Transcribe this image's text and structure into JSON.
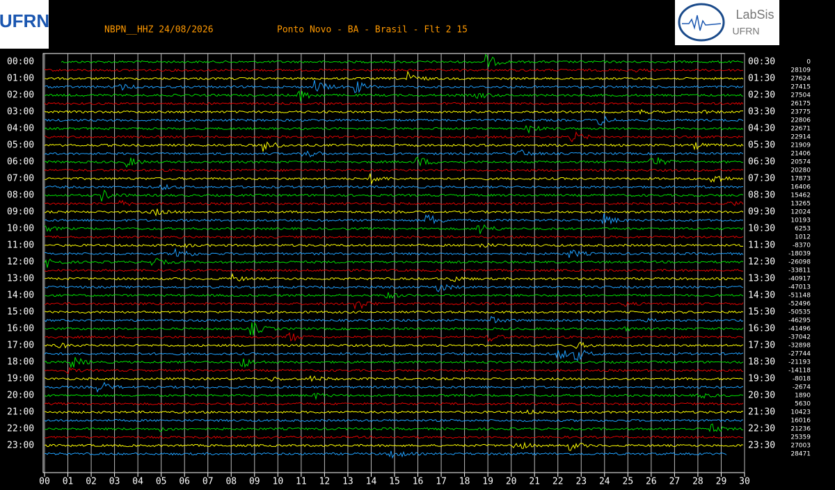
{
  "header": {
    "station": "NBPN__HHZ 24/08/2026",
    "location": "Ponto Novo - BA - Brasil - Flt 2 15",
    "logo_left": "UFRN",
    "logo_right": [
      "LabSis",
      "UFRN"
    ]
  },
  "traces": {
    "left_labels": [
      "00:00",
      "01:00",
      "02:00",
      "03:00",
      "04:00",
      "05:00",
      "06:00",
      "07:00",
      "08:00",
      "09:00",
      "10:00",
      "11:00",
      "12:00",
      "13:00",
      "14:00",
      "15:00",
      "16:00",
      "17:00",
      "18:00",
      "19:00",
      "20:00",
      "21:00",
      "22:00",
      "23:00"
    ],
    "right_labels": [
      "00:30",
      "01:30",
      "02:30",
      "03:30",
      "04:30",
      "05:30",
      "06:30",
      "07:30",
      "08:30",
      "09:30",
      "10:30",
      "11:30",
      "12:30",
      "13:30",
      "14:30",
      "15:30",
      "16:30",
      "17:30",
      "18:30",
      "19:30",
      "20:30",
      "21:30",
      "22:30",
      "23:30"
    ],
    "offsets": [
      0,
      28109,
      27624,
      27415,
      27504,
      26175,
      23775,
      22806,
      22671,
      22914,
      21909,
      21406,
      20574,
      20280,
      17873,
      16406,
      15462,
      13265,
      12024,
      10193,
      6253,
      1012,
      -8370,
      -18039,
      -26098,
      -33811,
      -40917,
      -47013,
      -51148,
      -52496,
      -50535,
      -46295,
      -41496,
      -37042,
      -32898,
      -27744,
      -21193,
      -14118,
      -8018,
      -2674,
      1890,
      5630,
      10423,
      16016,
      21236,
      25359,
      27003,
      28471
    ],
    "colors": [
      "#00e000",
      "#e00000",
      "#ffff00",
      "#1ea0ff"
    ]
  },
  "x_axis": {
    "ticks": [
      "00",
      "01",
      "02",
      "03",
      "04",
      "05",
      "06",
      "07",
      "08",
      "09",
      "10",
      "11",
      "12",
      "13",
      "14",
      "15",
      "16",
      "17",
      "18",
      "19",
      "20",
      "21",
      "22",
      "23",
      "24",
      "25",
      "26",
      "27",
      "28",
      "29",
      "30"
    ]
  }
}
